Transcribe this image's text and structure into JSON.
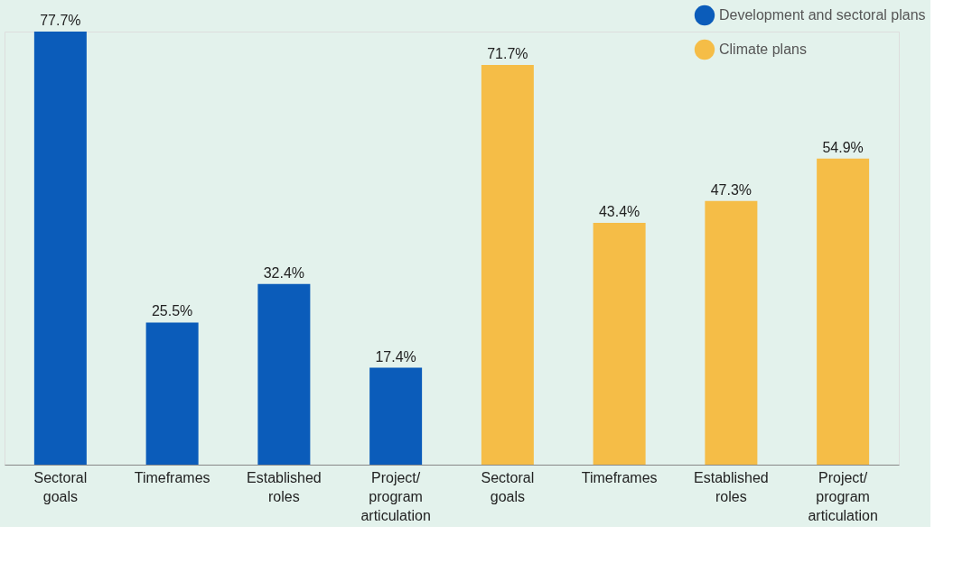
{
  "chart_data": {
    "type": "bar",
    "categories": [
      "Sectoral goals",
      "Timeframes",
      "Established roles",
      "Project/ program articulation",
      "Sectoral goals",
      "Timeframes",
      "Established roles",
      "Project/ program articulation"
    ],
    "series": [
      {
        "name": "Development and sectoral plans",
        "color": "#0b5cba",
        "values": [
          77.7,
          25.5,
          32.4,
          17.4,
          null,
          null,
          null,
          null
        ],
        "value_labels": [
          "77.7%",
          "25.5%",
          "32.4%",
          "17.4%",
          null,
          null,
          null,
          null
        ]
      },
      {
        "name": "Climate plans",
        "color": "#f5bd47",
        "values": [
          null,
          null,
          null,
          null,
          71.7,
          43.4,
          47.3,
          54.9
        ],
        "value_labels": [
          null,
          null,
          null,
          null,
          "71.7%",
          "43.4%",
          "47.3%",
          "54.9%"
        ]
      }
    ],
    "legend": "top right",
    "grid": false,
    "tick_labels": "x"
  }
}
